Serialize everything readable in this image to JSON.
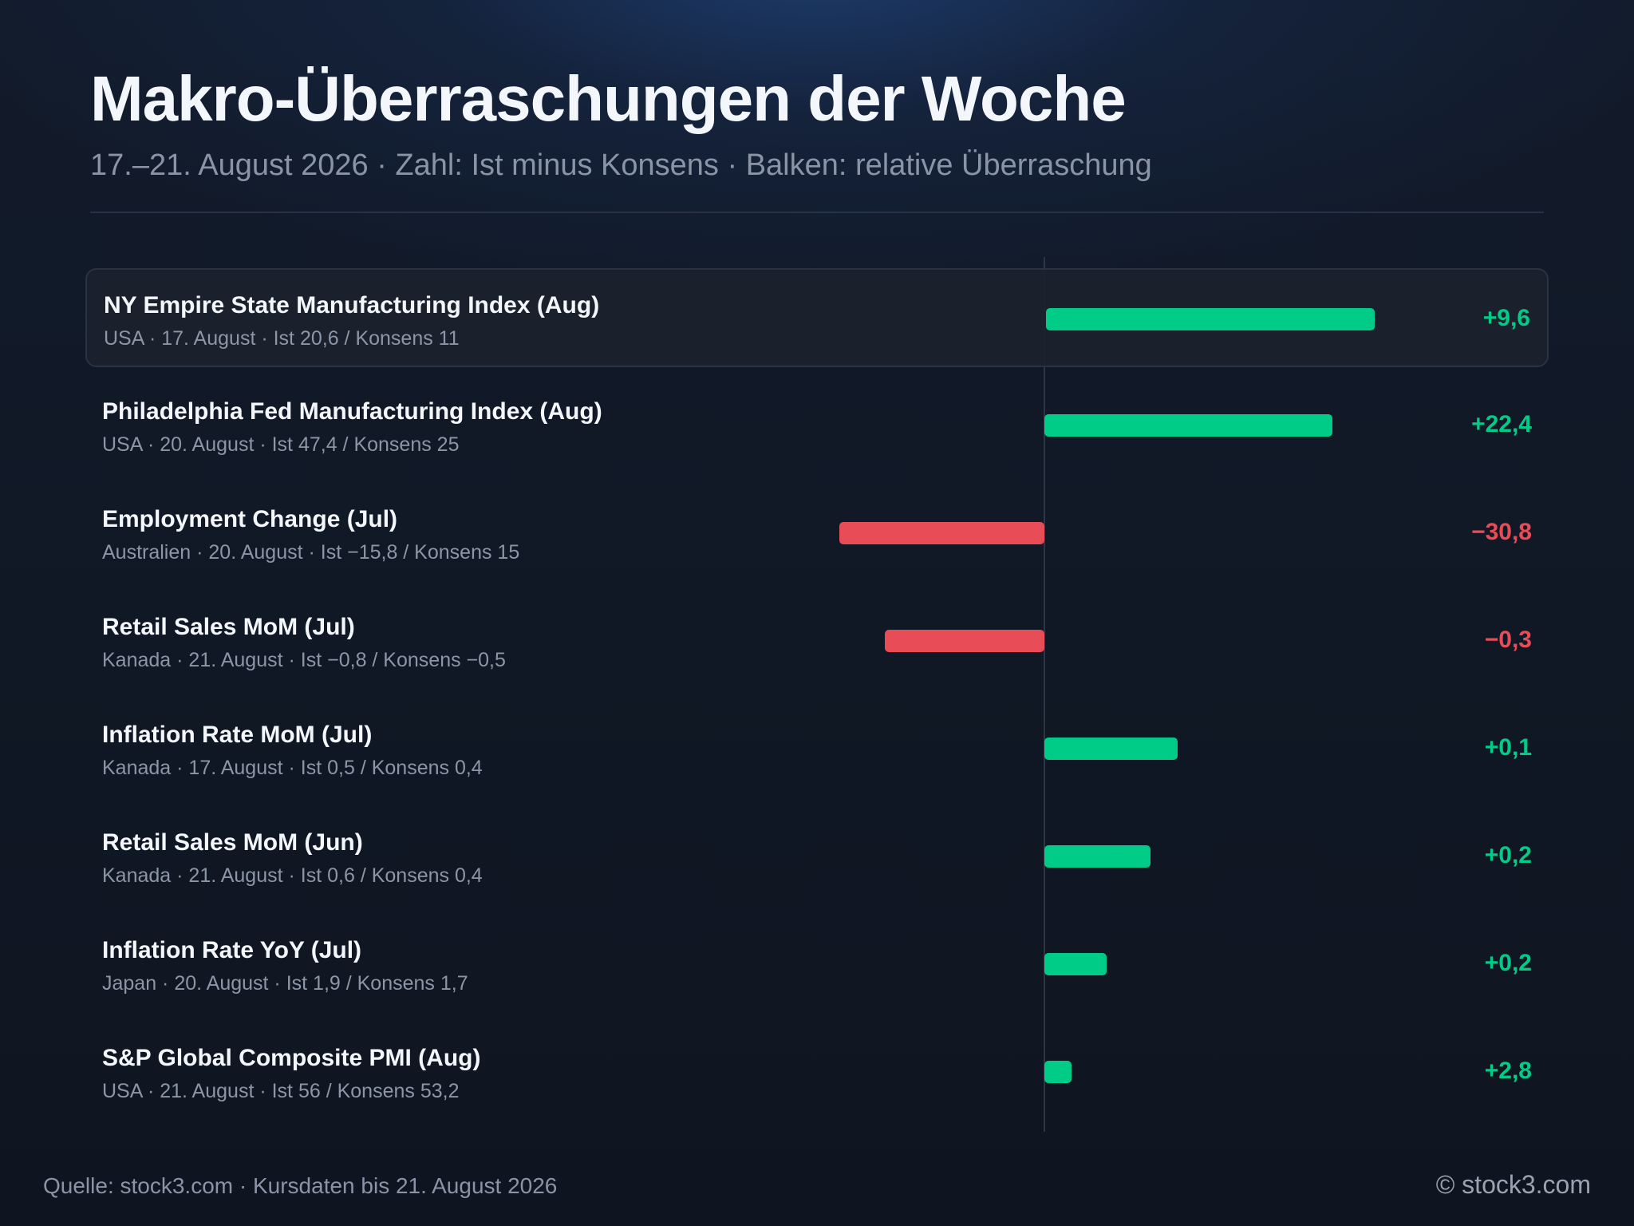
{
  "header": {
    "title": "Makro-Überraschungen der Woche",
    "subtitle": "17.–21. August 2026 · Zahl: Ist minus Konsens · Balken: relative Überraschung"
  },
  "colors": {
    "positive": "#00cc88",
    "negative": "#e84c57",
    "background": "#0f1520"
  },
  "chart_data": {
    "type": "bar",
    "orientation": "horizontal",
    "title": "Makro-Überraschungen der Woche",
    "categories": [
      "NY Empire State Manufacturing Index (Aug)",
      "Philadelphia Fed Manufacturing Index (Aug)",
      "Employment Change (Jul)",
      "Retail Sales MoM (Jul)",
      "Inflation Rate MoM (Jul)",
      "Retail Sales MoM (Jun)",
      "Inflation Rate YoY (Jul)",
      "S&P Global Composite PMI (Aug)"
    ],
    "relative_surprise": [
      0.873,
      0.765,
      -0.545,
      -0.424,
      0.354,
      0.282,
      0.166,
      0.072
    ],
    "value_labels": [
      "+9,6",
      "+22,4",
      "−30,8",
      "−0,3",
      "+0,1",
      "+0,2",
      "+0,2",
      "+2,8"
    ],
    "xlim": [
      -1,
      1
    ],
    "grid": false,
    "highlighted_row": 0
  },
  "rows": [
    {
      "label": "NY Empire State Manufacturing Index (Aug)",
      "meta": "USA · 17. August · Ist 20,6 / Konsens 11",
      "value": "+9,6",
      "sign": "pos"
    },
    {
      "label": "Philadelphia Fed Manufacturing Index (Aug)",
      "meta": "USA · 20. August · Ist 47,4 / Konsens 25",
      "value": "+22,4",
      "sign": "pos"
    },
    {
      "label": "Employment Change (Jul)",
      "meta": "Australien · 20. August · Ist −15,8 / Konsens 15",
      "value": "−30,8",
      "sign": "neg"
    },
    {
      "label": "Retail Sales MoM (Jul)",
      "meta": "Kanada · 21. August · Ist −0,8 / Konsens −0,5",
      "value": "−0,3",
      "sign": "neg"
    },
    {
      "label": "Inflation Rate MoM (Jul)",
      "meta": "Kanada · 17. August · Ist 0,5 / Konsens 0,4",
      "value": "+0,1",
      "sign": "pos"
    },
    {
      "label": "Retail Sales MoM (Jun)",
      "meta": "Kanada · 21. August · Ist 0,6 / Konsens 0,4",
      "value": "+0,2",
      "sign": "pos"
    },
    {
      "label": "Inflation Rate YoY (Jul)",
      "meta": "Japan · 20. August · Ist 1,9 / Konsens 1,7",
      "value": "+0,2",
      "sign": "pos"
    },
    {
      "label": "S&P Global Composite PMI (Aug)",
      "meta": "USA · 21. August · Ist 56 / Konsens 53,2",
      "value": "+2,8",
      "sign": "pos"
    }
  ],
  "footer": {
    "source": "Quelle: stock3.com · Kursdaten bis 21. August 2026",
    "brand": "© stock3.com"
  }
}
